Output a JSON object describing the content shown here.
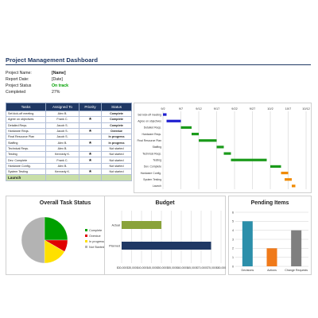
{
  "dashboard": {
    "title": "Project Management Dashboard",
    "info": [
      {
        "label": "Project Name:",
        "value": "[Name]",
        "style": "bold"
      },
      {
        "label": "Report Date:",
        "value": "[Date]",
        "style": "plain"
      },
      {
        "label": "Project Status",
        "value": "On track",
        "style": "green"
      },
      {
        "label": "Completed",
        "value": "27%",
        "style": "plain"
      }
    ]
  },
  "task_table": {
    "headers": [
      "Tasks",
      "Assigned To",
      "Priority",
      "Status"
    ],
    "rows": [
      {
        "task": "Set kick-off meeting",
        "assigned": "Alex B.",
        "priority": false,
        "status": "Complete",
        "cls": "st-complete"
      },
      {
        "task": "Agree on objectives",
        "assigned": "Frank C.",
        "priority": true,
        "status": "Complete",
        "cls": "st-complete"
      },
      {
        "task": "Detailed Reqs.",
        "assigned": "Jacob S.",
        "priority": false,
        "status": "Complete",
        "cls": "st-complete"
      },
      {
        "task": "Hardware Reqs.",
        "assigned": "Jacob S.",
        "priority": true,
        "status": "Overdue",
        "cls": "st-overdue"
      },
      {
        "task": "Final Resource Plan",
        "assigned": "Jacob S.",
        "priority": false,
        "status": "In progress",
        "cls": "st-progress"
      },
      {
        "task": "Staffing",
        "assigned": "Alex B.",
        "priority": true,
        "status": "In progress",
        "cls": "st-progress"
      },
      {
        "task": "Technical Reqs.",
        "assigned": "Alex B.",
        "priority": false,
        "status": "Not started",
        "cls": "st-notstarted"
      },
      {
        "task": "Testing",
        "assigned": "Kennedy K.",
        "priority": true,
        "status": "Not started",
        "cls": "st-notstarted"
      },
      {
        "task": "Dev. Complete",
        "assigned": "Frank C.",
        "priority": true,
        "status": "Not started",
        "cls": "st-notstarted"
      },
      {
        "task": "Hardware Config.",
        "assigned": "Alex B.",
        "priority": false,
        "status": "Not started",
        "cls": "st-notstarted"
      },
      {
        "task": "System Testing",
        "assigned": "Kennedy K.",
        "priority": true,
        "status": "Not started",
        "cls": "st-notstarted"
      }
    ],
    "launch_label": "Launch",
    "star_glyph": "★"
  },
  "chart_data": [
    {
      "type": "gantt",
      "tasks": [
        {
          "name": "Set kick-off meeting",
          "start": "9/2",
          "end": "9/3",
          "color": "#1f1fd0"
        },
        {
          "name": "Agree on objectives",
          "start": "9/3",
          "end": "9/7",
          "color": "#1f1fd0"
        },
        {
          "name": "Detailed Reqs.",
          "start": "9/7",
          "end": "9/10",
          "color": "#1a9a1a"
        },
        {
          "name": "Hardware Reqs.",
          "start": "9/10",
          "end": "9/12",
          "color": "#1a9a1a"
        },
        {
          "name": "Final Resource Plan",
          "start": "9/12",
          "end": "9/17",
          "color": "#1a9a1a"
        },
        {
          "name": "Staffing",
          "start": "9/17",
          "end": "9/19",
          "color": "#1a9a1a"
        },
        {
          "name": "Technical Reqs.",
          "start": "9/19",
          "end": "9/21",
          "color": "#1a9a1a"
        },
        {
          "name": "Testing",
          "start": "9/21",
          "end": "10/1",
          "color": "#1a9a1a"
        },
        {
          "name": "Dev. Complete",
          "start": "10/2",
          "end": "10/5",
          "color": "#1a9a1a"
        },
        {
          "name": "Hardware Config.",
          "start": "10/5",
          "end": "10/7",
          "color": "#f08a00"
        },
        {
          "name": "System Testing",
          "start": "10/6",
          "end": "10/8",
          "color": "#f08a00"
        },
        {
          "name": "Launch",
          "start": "10/8",
          "end": "10/9",
          "color": "#f08a00"
        }
      ],
      "x_ticks": [
        "9/2",
        "9/7",
        "9/12",
        "9/17",
        "9/22",
        "9/27",
        "10/2",
        "10/7",
        "10/12"
      ],
      "xlim": [
        "9/2",
        "10/12"
      ],
      "grid": true
    },
    {
      "type": "pie",
      "title": "Overall Task Status",
      "slices": [
        {
          "name": "Complete",
          "value": 25,
          "color": "#00a000"
        },
        {
          "name": "Overdue",
          "value": 8.3,
          "color": "#e00000"
        },
        {
          "name": "In progress",
          "value": 16.7,
          "color": "#ffe000"
        },
        {
          "name": "Not Started",
          "value": 50,
          "color": "#b3b3b3"
        }
      ],
      "legend": "right"
    },
    {
      "type": "bar",
      "orientation": "horizontal",
      "title": "Budget",
      "categories": [
        "Actual",
        "Planned"
      ],
      "values": [
        50000,
        75000
      ],
      "colors": [
        "#8aa33a",
        "#1f3864"
      ],
      "xlim": [
        30000,
        80000
      ],
      "x_ticks": [
        "$30,000",
        "$35,000",
        "$40,000",
        "$45,000",
        "$50,000",
        "$55,000",
        "$60,000",
        "$65,000",
        "$70,000",
        "$75,000",
        "$80,000"
      ],
      "grid": true
    },
    {
      "type": "bar",
      "title": "Pending Items",
      "categories": [
        "Decisions",
        "Actions",
        "Change Requests"
      ],
      "values": [
        5,
        2,
        4
      ],
      "colors": [
        "#2c8faa",
        "#f07a1a",
        "#7f7f7f"
      ],
      "ylim": [
        0,
        6
      ],
      "y_ticks": [
        0,
        1,
        2,
        3,
        4,
        5,
        6
      ],
      "grid": true
    }
  ]
}
